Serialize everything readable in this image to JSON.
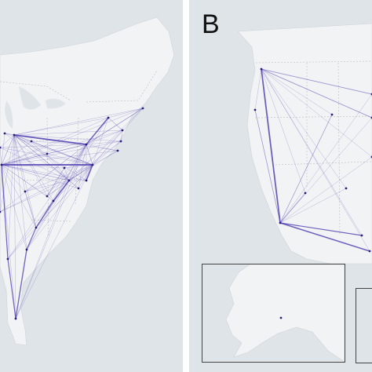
{
  "panels": [
    {
      "id": "A",
      "letter": ""
    },
    {
      "id": "B",
      "letter": "B"
    }
  ],
  "colors": {
    "land": "#f2f3f4",
    "water": "#dfe4e8",
    "border": "#b9bec3",
    "edge": "#4b3bb0",
    "node": "#2a1e7a",
    "inset_frame": "#444444"
  }
}
